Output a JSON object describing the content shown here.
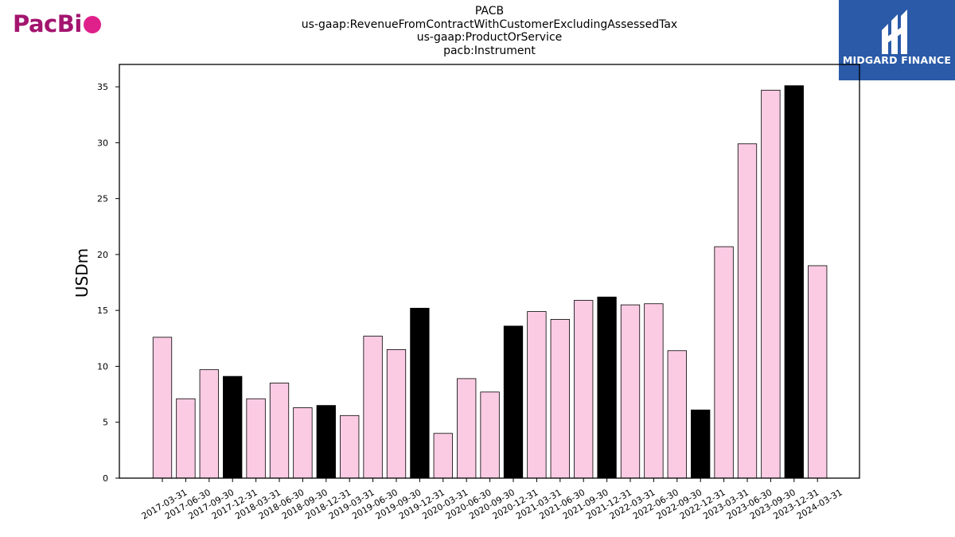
{
  "logos": {
    "left": {
      "text": "PacBi",
      "color": "#a3156e",
      "dot_color": "#e0208a"
    },
    "right": {
      "text": "MIDGARD FINANCE",
      "bg_color": "#2a5aa8"
    }
  },
  "chart_data": {
    "type": "bar",
    "title": [
      "PACB",
      "us-gaap:RevenueFromContractWithCustomerExcludingAssessedTax",
      "us-gaap:ProductOrService",
      "pacb:Instrument"
    ],
    "xlabel": "",
    "ylabel": "USDm",
    "ylim": [
      0,
      37
    ],
    "yticks": [
      0,
      5,
      10,
      15,
      20,
      25,
      30,
      35
    ],
    "grid": false,
    "categories": [
      "2017-03-31",
      "2017-06-30",
      "2017-09-30",
      "2017-12-31",
      "2018-03-31",
      "2018-06-30",
      "2018-09-30",
      "2018-12-31",
      "2019-03-31",
      "2019-06-30",
      "2019-09-30",
      "2019-12-31",
      "2020-03-31",
      "2020-06-30",
      "2020-09-30",
      "2020-12-31",
      "2021-03-31",
      "2021-06-30",
      "2021-09-30",
      "2021-12-31",
      "2022-03-31",
      "2022-06-30",
      "2022-09-30",
      "2022-12-31",
      "2023-03-31",
      "2023-06-30",
      "2023-09-30",
      "2023-12-31",
      "2024-03-31"
    ],
    "values": [
      12.6,
      7.1,
      9.7,
      9.1,
      7.1,
      8.5,
      6.3,
      6.5,
      5.6,
      12.7,
      11.5,
      15.2,
      4.0,
      8.9,
      7.7,
      13.6,
      14.9,
      14.2,
      15.9,
      16.2,
      15.5,
      15.6,
      11.4,
      6.1,
      20.7,
      29.9,
      34.7,
      35.1,
      19.0
    ],
    "colors": {
      "quarter": "#fbcbe3",
      "year_end": "#000000",
      "edge": "#000000"
    }
  }
}
